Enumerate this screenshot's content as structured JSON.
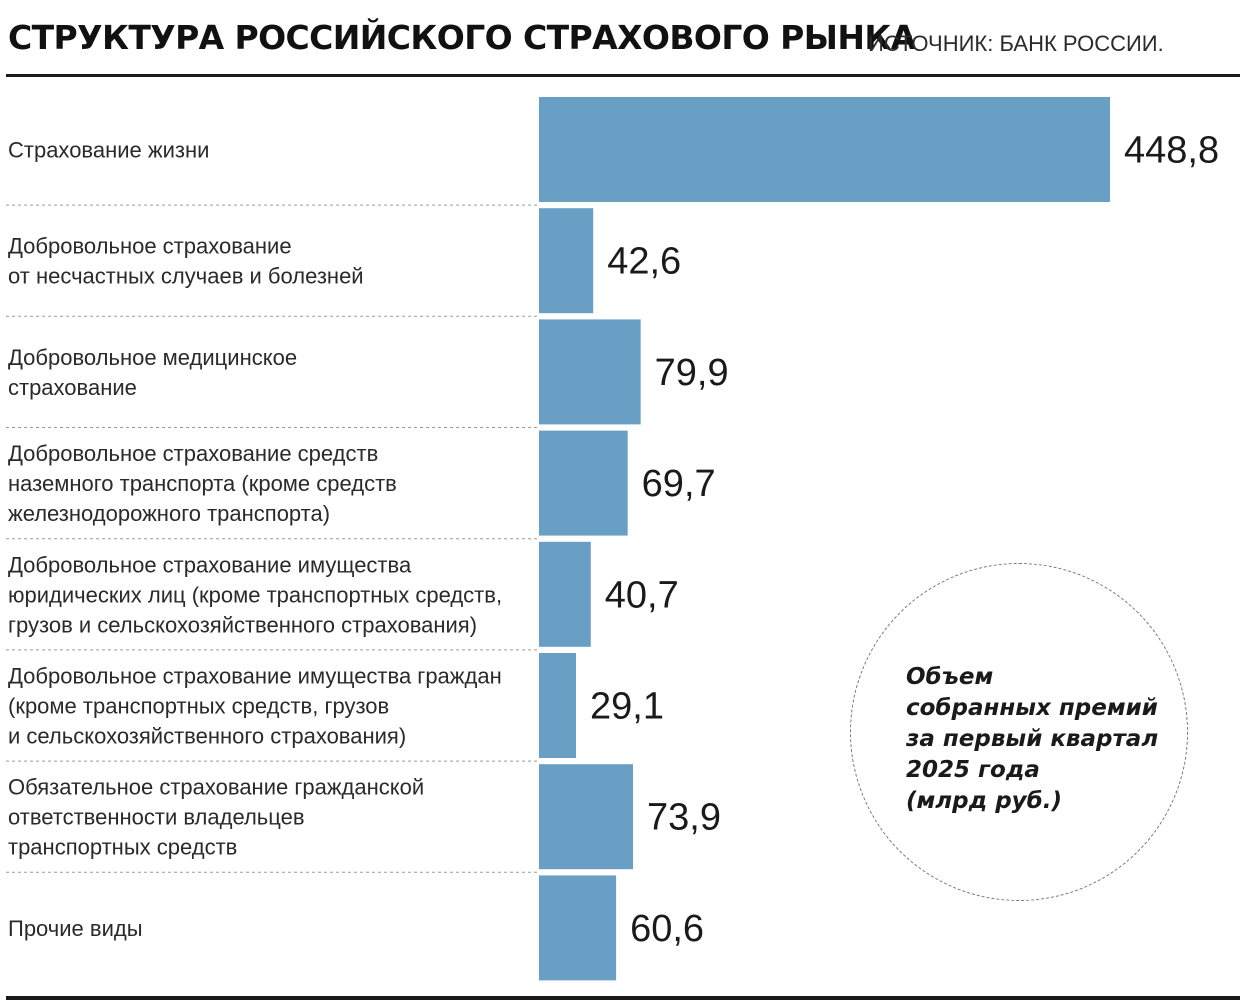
{
  "header": {
    "title": "СТРУКТУРА РОССИЙСКОГО СТРАХОВОГО РЫНКА",
    "source": "ИСТОЧНИК: БАНК РОССИИ."
  },
  "note": "Объем\nсобранных премий\nза первый квартал\n2025 года\n(млрд руб.)",
  "colors": {
    "bar": "#6a9fc5",
    "text": "#1a1a1a",
    "rule": "#1a1a1a"
  },
  "chart_data": {
    "type": "bar",
    "orientation": "horizontal",
    "title": "СТРУКТУРА РОССИЙСКОГО СТРАХОВОГО РЫНКА",
    "unit": "млрд руб.",
    "categories": [
      [
        "Страхование жизни"
      ],
      [
        "Добровольное страхование",
        "от несчастных случаев и болезней"
      ],
      [
        "Добровольное медицинское",
        "страхование"
      ],
      [
        "Добровольное страхование средств",
        "наземного транспорта (кроме средств",
        "железнодорожного транспорта)"
      ],
      [
        "Добровольное страхование имущества",
        "юридических лиц (кроме транспортных средств,",
        "грузов и сельскохозяйственного страхования)"
      ],
      [
        "Добровольное страхование имущества граждан",
        "(кроме транспортных средств, грузов",
        "и сельскохозяйственного страхования)"
      ],
      [
        "Обязательное страхование гражданской",
        "ответственности владельцев",
        "транспортных средств"
      ],
      [
        "Прочие виды"
      ]
    ],
    "values": [
      448.8,
      42.6,
      79.9,
      69.7,
      40.7,
      29.1,
      73.9,
      60.6
    ],
    "value_labels": [
      "448,8",
      "42,6",
      "79,9",
      "69,7",
      "40,7",
      "29,1",
      "73,9",
      "60,6"
    ],
    "xlim": [
      0,
      448.8
    ],
    "grid": false,
    "legend": "none"
  }
}
